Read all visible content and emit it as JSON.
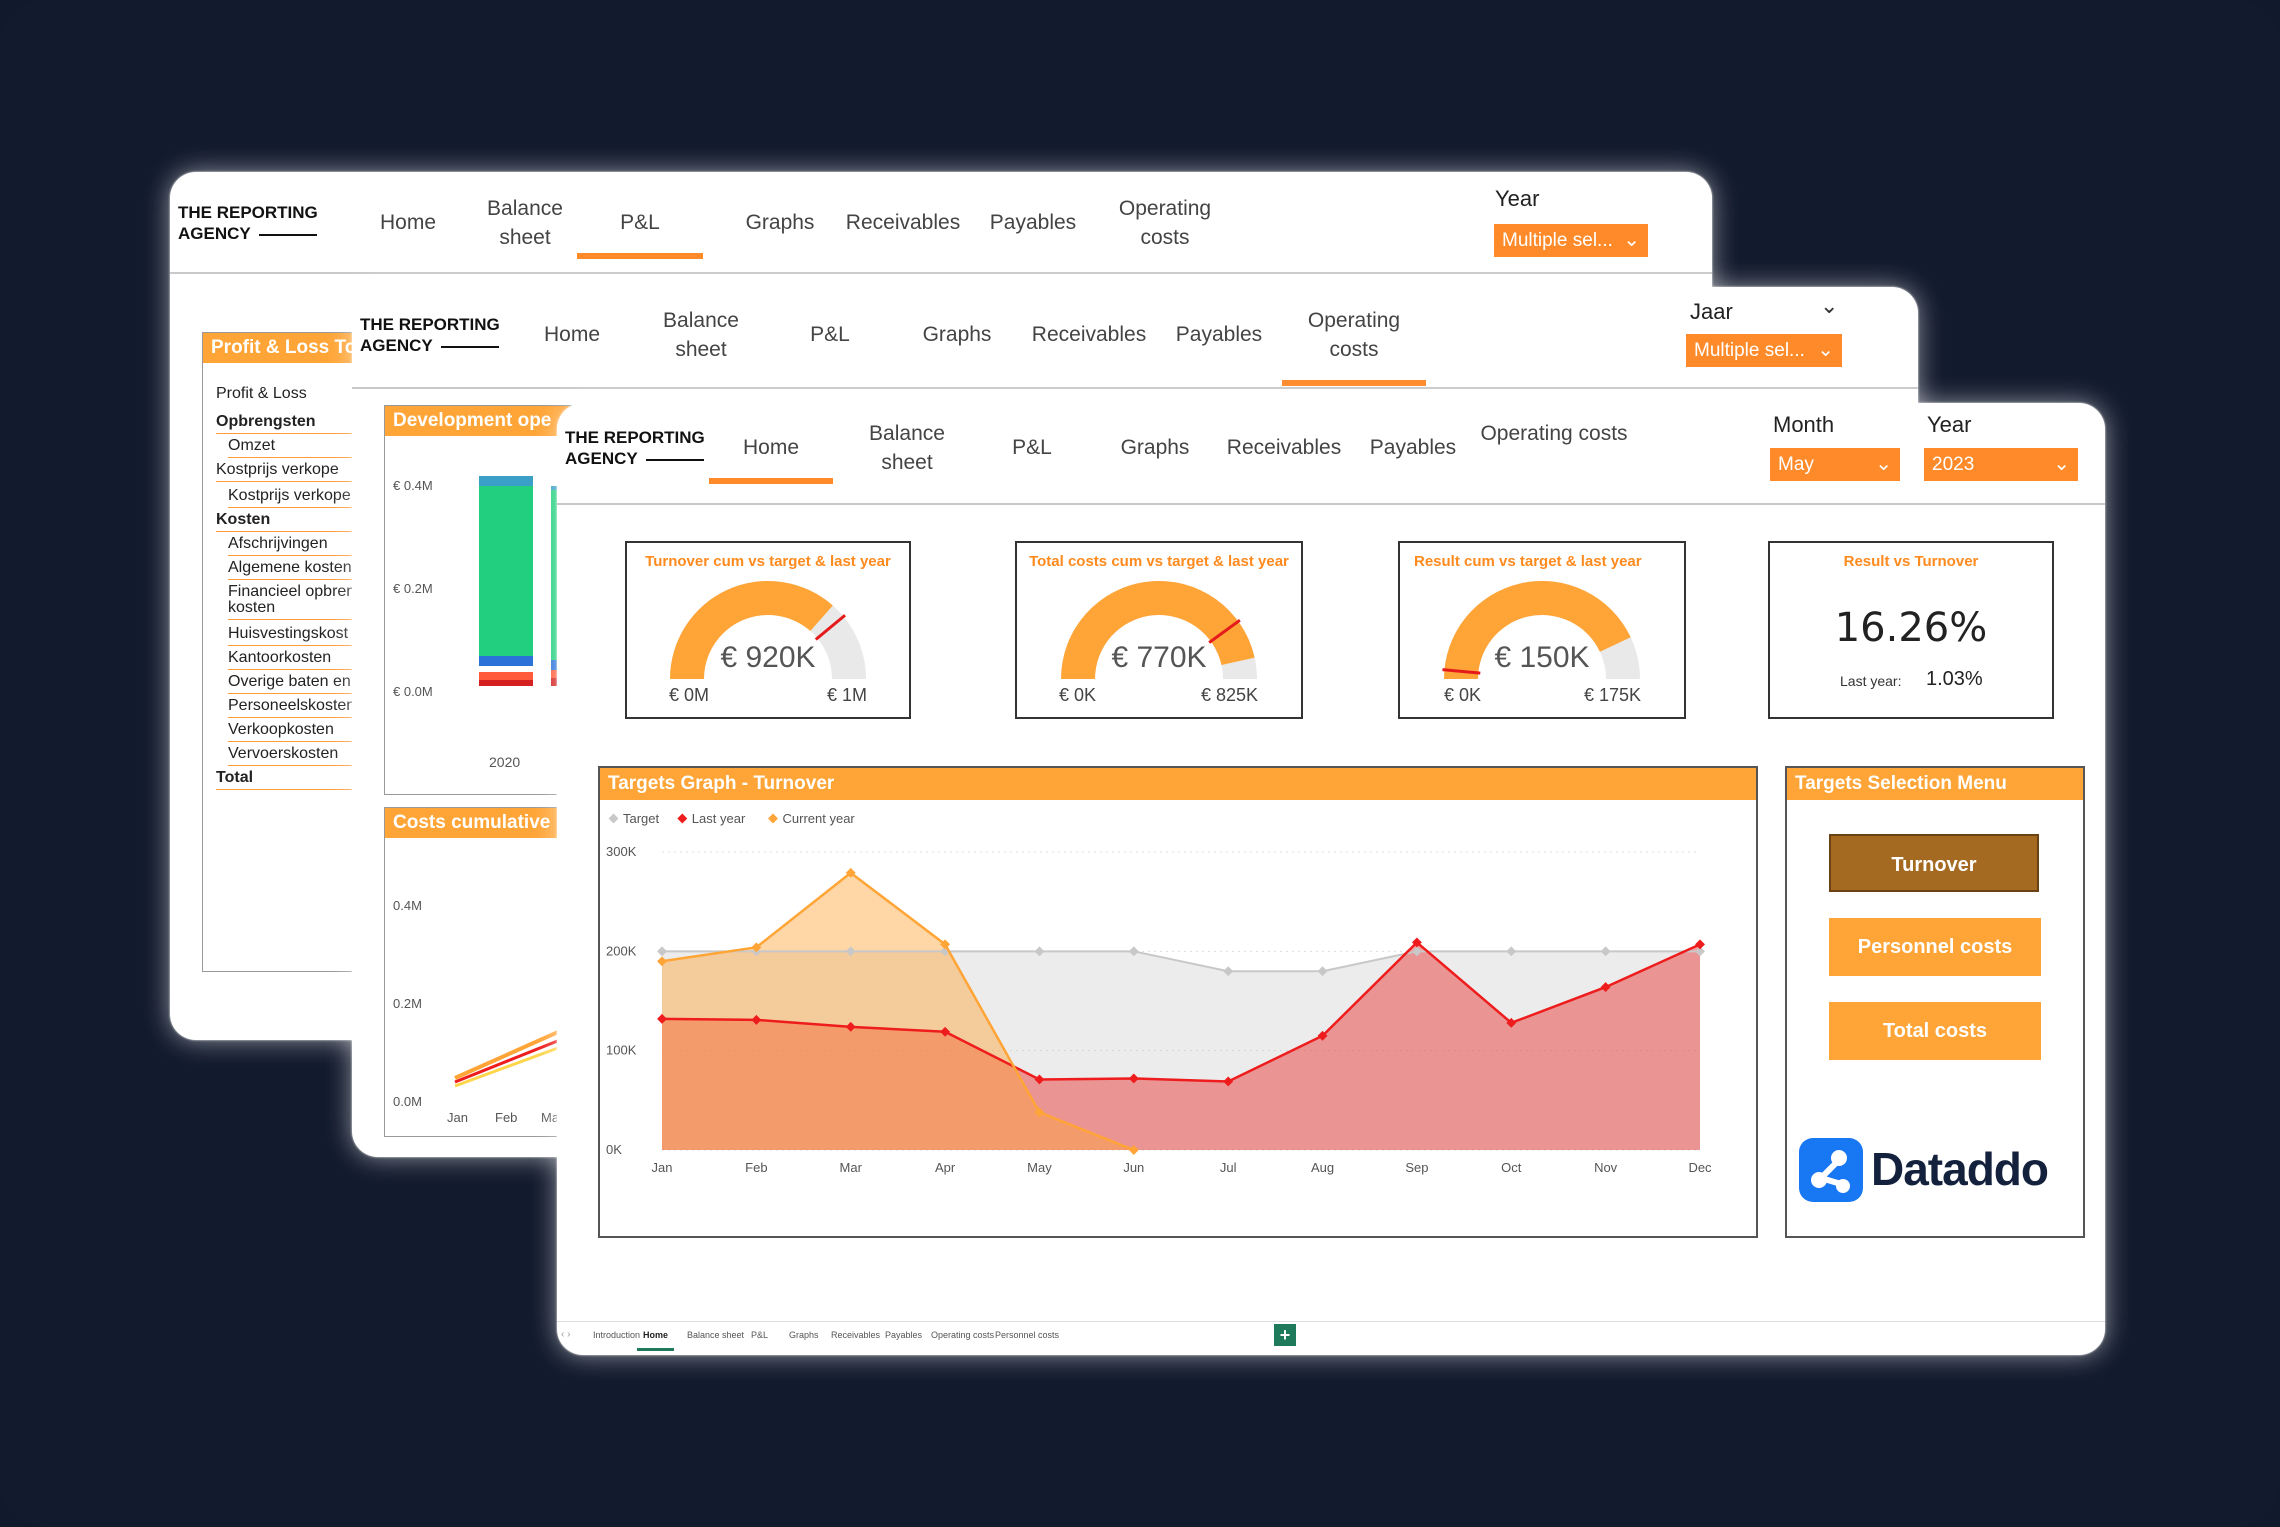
{
  "colors": {
    "background": "#11192c",
    "orange": "#ff8a2a",
    "panel_orange": "#ffa537",
    "turnover_btn": "#a56a22",
    "dataddo_blue": "#1877f2"
  },
  "screen1": {
    "logo_line1": "THE REPORTING",
    "logo_line2": "AGENCY",
    "nav": [
      "Home",
      "Balance sheet",
      "P&L",
      "Graphs",
      "Receivables",
      "Payables",
      "Operating costs"
    ],
    "active": "P&L",
    "year_label": "Year",
    "year_value": "Multiple sel...",
    "pl_title": "Profit & Loss To",
    "pl_rows": [
      "Profit & Loss",
      "Opbrengsten",
      "Omzet",
      "Kostprijs verkope",
      "Kostprijs verkope",
      "Kosten",
      "Afschrijvingen",
      "Algemene kosten",
      "Financieel opbren",
      "kosten",
      "Huisvestingskost",
      "Kantoorkosten",
      "Overige baten en",
      "Personeelskosten",
      "Verkoopkosten",
      "Vervoerskosten",
      "Total"
    ]
  },
  "screen2": {
    "logo_line1": "THE REPORTING",
    "logo_line2": "AGENCY",
    "nav": [
      "Home",
      "Balance sheet",
      "P&L",
      "Graphs",
      "Receivables",
      "Payables",
      "Operating costs"
    ],
    "active": "Operating costs",
    "year_label": "Jaar",
    "year_value": "Multiple sel...",
    "dev_title": "Development ope",
    "dev_ticks": [
      "€ 0.4M",
      "€ 0.2M",
      "€ 0.0M"
    ],
    "dev_x": "2020",
    "cum_title": "Costs cumulative",
    "cum_ticks": [
      "0.4M",
      "0.2M",
      "0.0M"
    ],
    "cum_x": [
      "Jan",
      "Feb",
      "Ma"
    ]
  },
  "screen3": {
    "logo_line1": "THE REPORTING",
    "logo_line2": "AGENCY",
    "nav": [
      "Home",
      "Balance sheet",
      "P&L",
      "Graphs",
      "Receivables",
      "Payables",
      "Operating costs"
    ],
    "active": "Home",
    "month_label": "Month",
    "month_value": "May",
    "year_label": "Year",
    "year_value": "2023",
    "kpis": [
      {
        "title": "Turnover cum vs target & last year",
        "value": "€ 920K",
        "min": "€ 0M",
        "max": "€ 1M",
        "fraction": 0.73,
        "target_fraction": 0.78
      },
      {
        "title": "Total costs cum vs target & last year",
        "value": "€ 770K",
        "min": "€ 0K",
        "max": "€ 825K",
        "fraction": 0.93,
        "target_fraction": 0.8
      },
      {
        "title": "Result cum vs target & last year",
        "value": "€ 150K",
        "min": "€ 0K",
        "max": "€ 175K",
        "fraction": 0.86,
        "target_fraction": 0.03
      }
    ],
    "ratio": {
      "title": "Result vs Turnover",
      "value": "16.26%",
      "last_label": "Last year:",
      "last_value": "1.03%"
    },
    "graph_title": "Targets Graph - Turnover",
    "menu_title": "Targets Selection Menu",
    "buttons": [
      "Turnover",
      "Personnel costs",
      "Total costs"
    ],
    "brand": "Dataddo",
    "tabs": [
      "Introduction",
      "Home",
      "Balance sheet",
      "P&L",
      "Graphs",
      "Receivables",
      "Payables",
      "Operating costs",
      "Personnel costs"
    ],
    "active_tab": "Home"
  },
  "chart_data": {
    "type": "area",
    "title": "Targets Graph - Turnover",
    "categories": [
      "Jan",
      "Feb",
      "Mar",
      "Apr",
      "May",
      "Jun",
      "Jul",
      "Aug",
      "Sep",
      "Oct",
      "Nov",
      "Dec"
    ],
    "yticks": [
      "0K",
      "100K",
      "200K",
      "300K"
    ],
    "ylim": [
      0,
      300000
    ],
    "legend_position": "top-left",
    "series": [
      {
        "name": "Target",
        "color": "#c8c8c8",
        "values": [
          200000,
          200000,
          200000,
          200000,
          200000,
          200000,
          180000,
          180000,
          200000,
          200000,
          200000,
          200000
        ]
      },
      {
        "name": "Last year",
        "color": "#ee1c1c",
        "values": [
          132000,
          131000,
          124000,
          119000,
          71000,
          72000,
          69000,
          115000,
          209000,
          128000,
          164000,
          207000
        ]
      },
      {
        "name": "Current year",
        "color": "#ffa537",
        "values": [
          190000,
          204000,
          279000,
          207000,
          38000,
          0,
          null,
          null,
          null,
          null,
          null,
          null
        ]
      }
    ]
  }
}
